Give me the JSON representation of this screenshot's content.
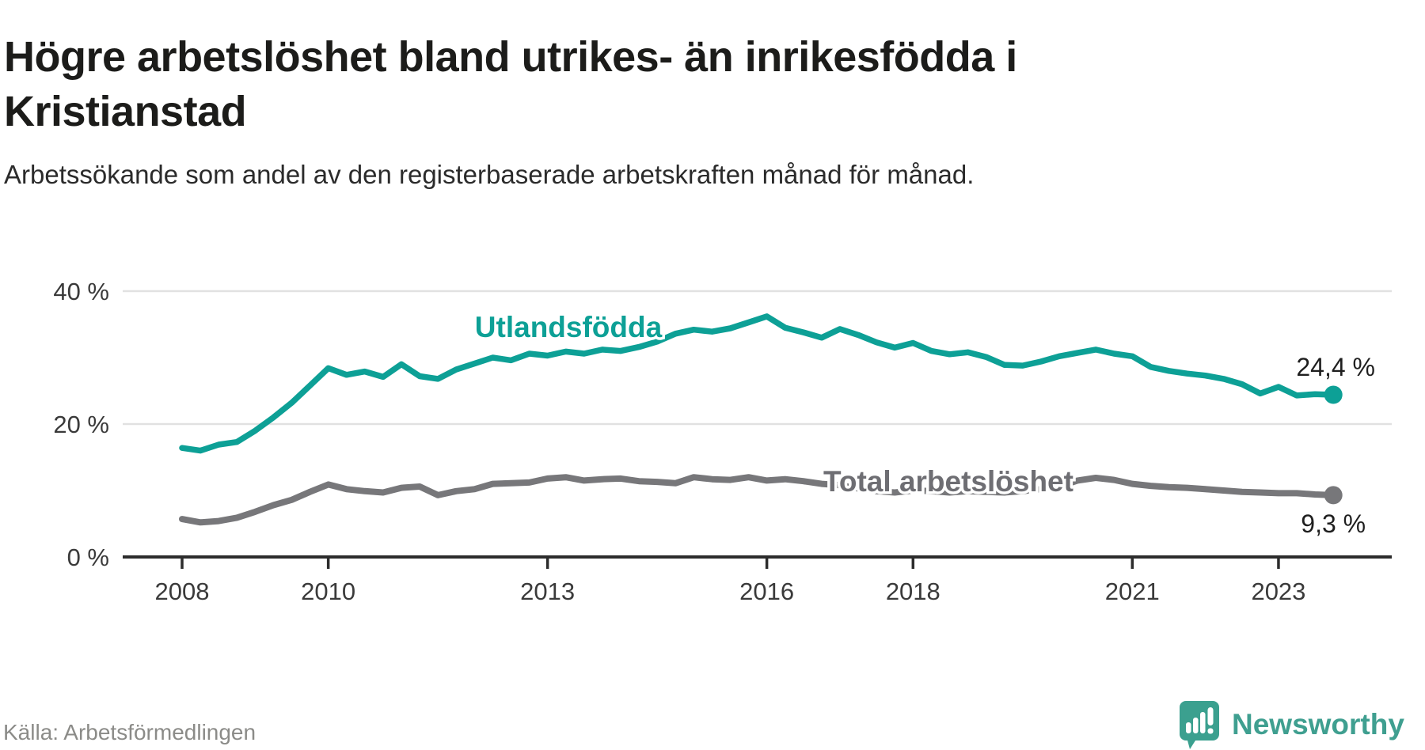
{
  "header": {
    "title": "Högre arbetslöshet bland utrikes- än inrikesfödda i Kristianstad",
    "subtitle": "Arbetssökande som andel av den registerbaserade arbetskraften månad för månad."
  },
  "footer": {
    "source": "Källa: Arbetsförmedlingen",
    "brand": "Newsworthy"
  },
  "colors": {
    "foreign_born_line": "#0da096",
    "total_line": "#77777a",
    "total_label": "#6e6e73",
    "value_label": "#1f1f1f",
    "axis": "#2c2c2c",
    "tick_text": "#3a3a3a",
    "grid": "#e1e1e1",
    "logo": "#3ba08f",
    "source_text": "#8b8b88"
  },
  "chart_data": {
    "type": "line",
    "title": "Högre arbetslöshet bland utrikes- än inrikesfödda i Kristianstad",
    "subtitle": "Arbetssökande som andel av den registerbaserade arbetskraften månad för månad.",
    "grid": "horizontal",
    "legend_position": "inline-labels",
    "ylim": [
      0,
      43
    ],
    "y_ticks": [
      {
        "value": 0,
        "label": "0 %"
      },
      {
        "value": 20,
        "label": "20 %"
      },
      {
        "value": 40,
        "label": "40 %"
      }
    ],
    "x_tick_years": [
      "2008",
      "2010",
      "2013",
      "2016",
      "2018",
      "2021",
      "2023"
    ],
    "x": [
      2008,
      2008.25,
      2008.5,
      2008.75,
      2009,
      2009.25,
      2009.5,
      2009.75,
      2010,
      2010.25,
      2010.5,
      2010.75,
      2011,
      2011.25,
      2011.5,
      2011.75,
      2012,
      2012.25,
      2012.5,
      2012.75,
      2013,
      2013.25,
      2013.5,
      2013.75,
      2014,
      2014.25,
      2014.5,
      2014.75,
      2015,
      2015.25,
      2015.5,
      2015.75,
      2016,
      2016.25,
      2016.5,
      2016.75,
      2017,
      2017.25,
      2017.5,
      2017.75,
      2018,
      2018.25,
      2018.5,
      2018.75,
      2019,
      2019.25,
      2019.5,
      2019.75,
      2020,
      2020.25,
      2020.5,
      2020.75,
      2021,
      2021.25,
      2021.5,
      2021.75,
      2022,
      2022.25,
      2022.5,
      2022.75,
      2023,
      2023.25,
      2023.5,
      2023.75
    ],
    "series": [
      {
        "name": "Utlandsfödda",
        "color": "#0da096",
        "end_label": "24,4 %",
        "values": [
          16.4,
          16.0,
          16.9,
          17.3,
          19.0,
          21.0,
          23.2,
          25.8,
          28.4,
          27.4,
          27.9,
          27.1,
          29.0,
          27.2,
          26.8,
          28.2,
          29.1,
          30.0,
          29.6,
          30.6,
          30.3,
          30.9,
          30.6,
          31.2,
          31.0,
          31.6,
          32.4,
          33.6,
          34.2,
          33.9,
          34.4,
          35.3,
          36.2,
          34.5,
          33.8,
          33.0,
          34.3,
          33.4,
          32.3,
          31.5,
          32.2,
          31.0,
          30.5,
          30.8,
          30.1,
          28.9,
          28.8,
          29.4,
          30.2,
          30.7,
          31.2,
          30.6,
          30.2,
          28.6,
          28.0,
          27.6,
          27.3,
          26.8,
          26.0,
          24.6,
          25.6,
          24.3,
          24.5,
          24.4
        ]
      },
      {
        "name": "Total arbetslöshet",
        "color": "#77777a",
        "label_color": "#6e6e73",
        "end_label": "9,3 %",
        "values": [
          5.7,
          5.2,
          5.4,
          5.9,
          6.8,
          7.8,
          8.6,
          9.8,
          10.9,
          10.2,
          9.9,
          9.7,
          10.4,
          10.6,
          9.3,
          9.9,
          10.2,
          11.0,
          11.1,
          11.2,
          11.8,
          12.0,
          11.5,
          11.7,
          11.8,
          11.4,
          11.3,
          11.1,
          12.0,
          11.7,
          11.6,
          12.0,
          11.5,
          11.7,
          11.4,
          11.0,
          10.8,
          10.3,
          9.9,
          9.7,
          10.0,
          9.9,
          9.7,
          9.9,
          9.8,
          9.7,
          9.9,
          10.2,
          10.6,
          11.5,
          11.9,
          11.6,
          11.0,
          10.7,
          10.5,
          10.4,
          10.2,
          10.0,
          9.8,
          9.7,
          9.6,
          9.6,
          9.4,
          9.3
        ]
      }
    ]
  }
}
